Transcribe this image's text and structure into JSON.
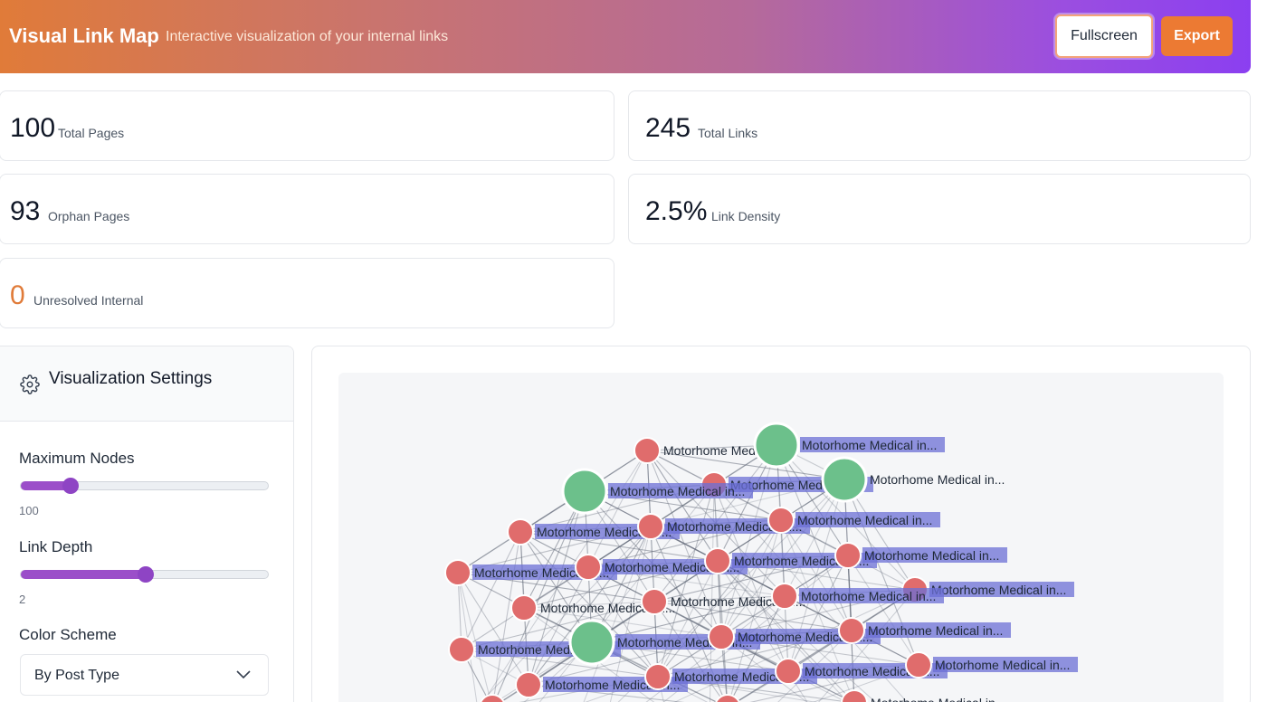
{
  "header": {
    "title": "Visual Link Map",
    "subtitle": "Interactive visualization of your internal links",
    "fullscreen_label": "Fullscreen",
    "export_label": "Export"
  },
  "stats": {
    "total_pages": {
      "value": "100",
      "label": "Total Pages"
    },
    "total_links": {
      "value": "245",
      "label": "Total Links"
    },
    "orphan_pages": {
      "value": "93",
      "label": "Orphan Pages"
    },
    "link_density": {
      "value": "2.5%",
      "label": "Link Density"
    },
    "unresolved": {
      "value": "0",
      "label": "Unresolved Internal"
    }
  },
  "settings": {
    "title": "Visualization Settings",
    "max_nodes": {
      "label": "Maximum Nodes",
      "value": "100",
      "fraction": 0.2
    },
    "link_depth": {
      "label": "Link Depth",
      "value": "2",
      "fraction": 0.5
    },
    "color_scheme": {
      "label": "Color Scheme",
      "value": "By Post Type"
    }
  },
  "graph": {
    "node_label": "Motorhome Medical in...",
    "colors": {
      "hub": "#6cc08b",
      "page": "#e06c6c",
      "label_bg": "#6b6fd6",
      "edge": "#6b7280"
    }
  }
}
